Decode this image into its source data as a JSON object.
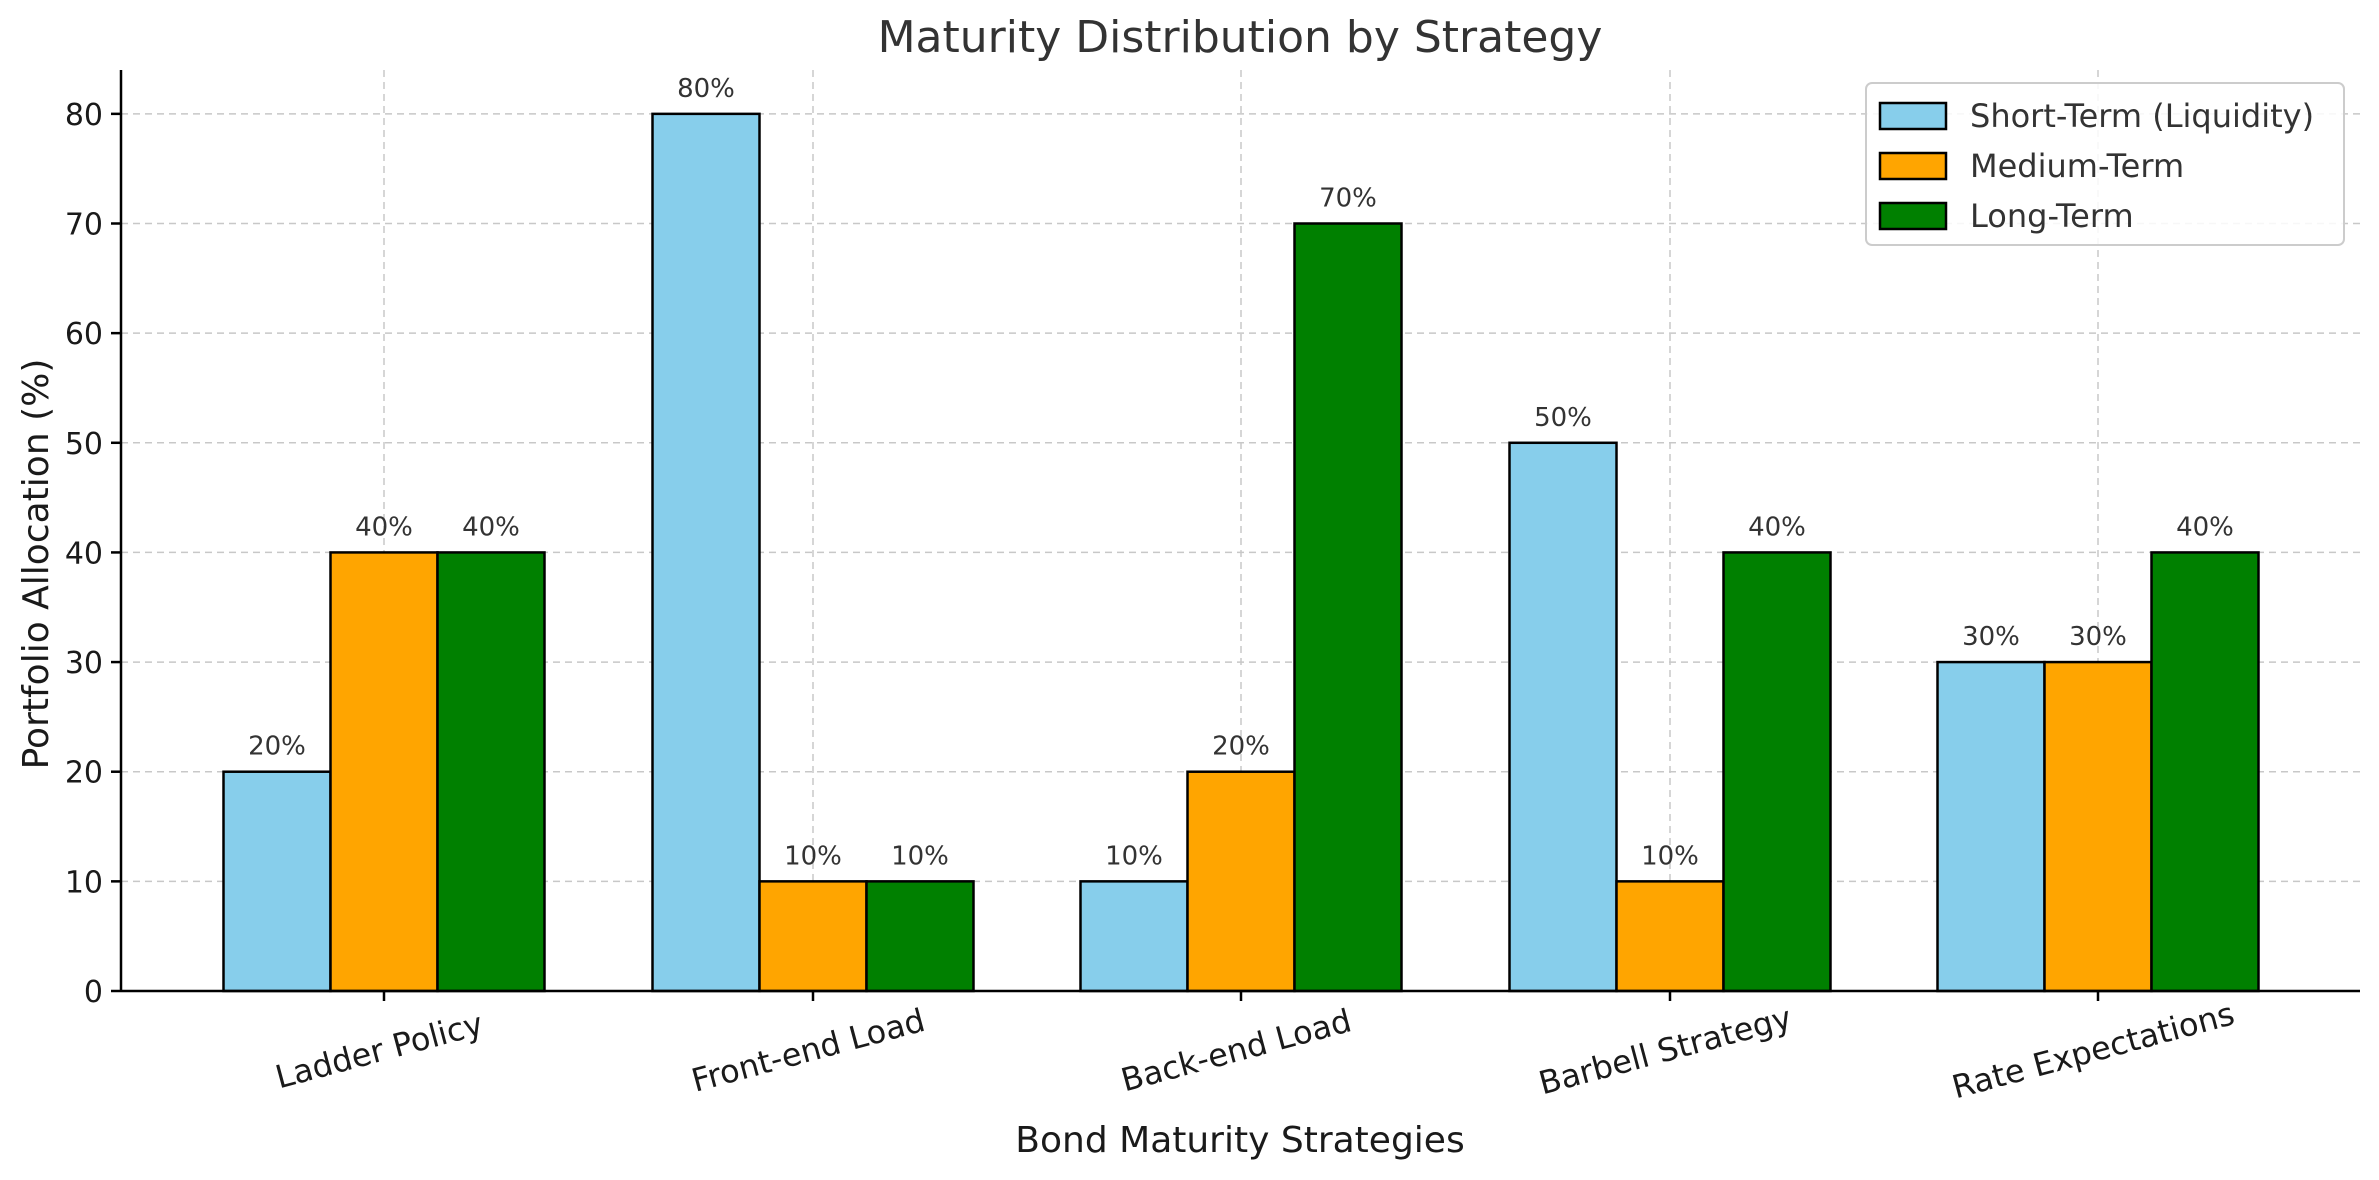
{
  "chart_data": {
    "type": "bar",
    "title": "Maturity Distribution by Strategy",
    "xlabel": "Bond Maturity Strategies",
    "ylabel": "Portfolio Allocation (%)",
    "ylim": [
      0,
      84
    ],
    "yticks": [
      0,
      10,
      20,
      30,
      40,
      50,
      60,
      70,
      80
    ],
    "grid": true,
    "legend_position": "top-right",
    "categories": [
      "Ladder Policy",
      "Front-end Load",
      "Back-end Load",
      "Barbell Strategy",
      "Rate Expectations"
    ],
    "series": [
      {
        "name": "Short-Term (Liquidity)",
        "color": "#87CEEB",
        "values": [
          20,
          80,
          10,
          50,
          30
        ]
      },
      {
        "name": "Medium-Term",
        "color": "#FFA500",
        "values": [
          40,
          10,
          20,
          10,
          30
        ]
      },
      {
        "name": "Long-Term",
        "color": "#008000",
        "values": [
          40,
          10,
          70,
          40,
          40
        ]
      }
    ],
    "value_label_suffix": "%"
  }
}
